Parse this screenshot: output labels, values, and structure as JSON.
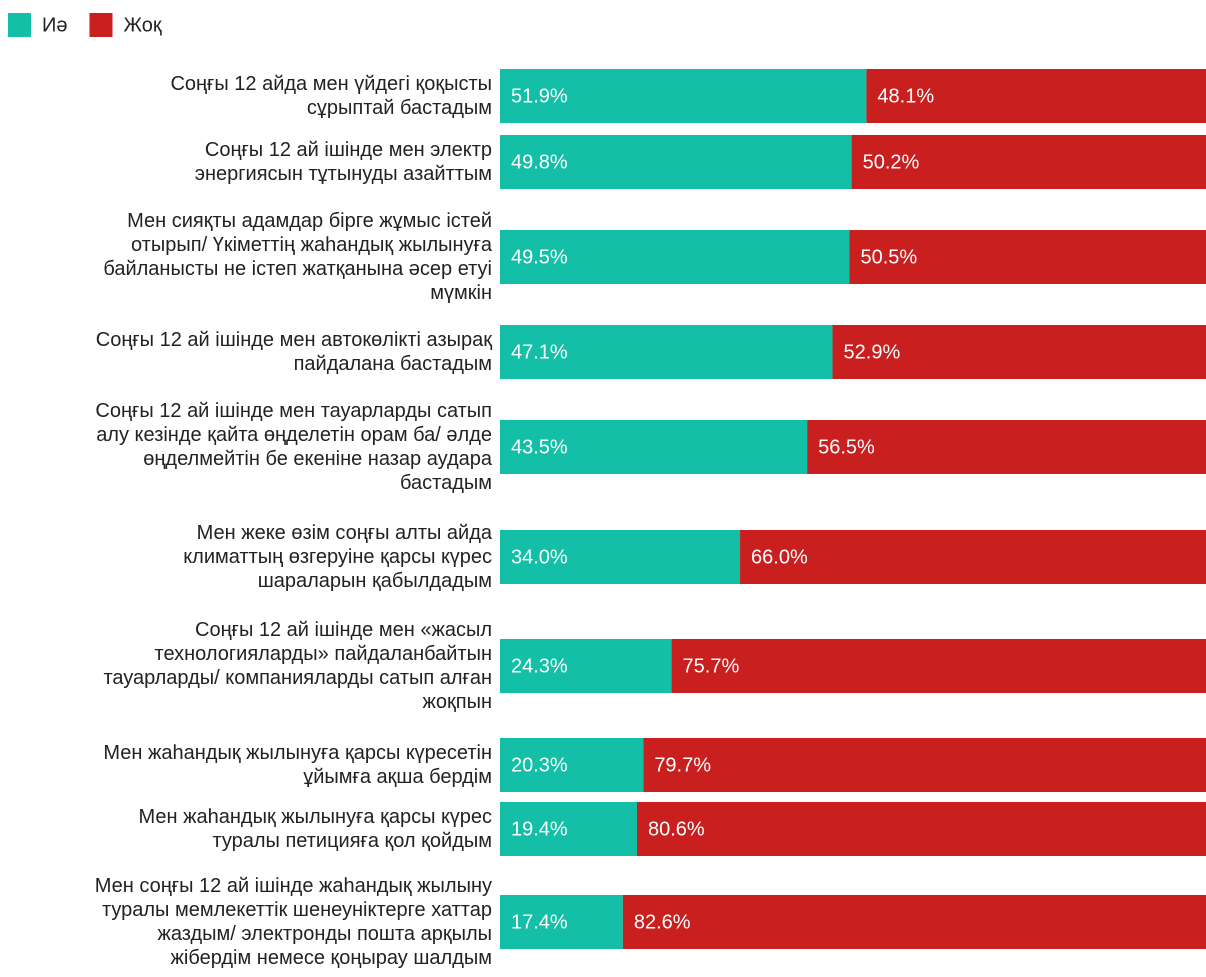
{
  "chart_data": {
    "type": "stacked-bar-horizontal",
    "categories": [
      "Соңғы 12 айда мен үйдегі қоқысты\nсұрыптай бастадым",
      "Соңғы 12 ай ішінде мен электр\nэнергиясын тұтынуды азайттым",
      "Мен сияқты адамдар бірге жұмыс істей\nотырып/ Үкіметтің жаһандық жылынуға\nбайланысты не істеп жатқанына әсер етуі\nмүмкін",
      "Соңғы 12 ай ішінде мен автокөлікті азырақ\nпайдалана бастадым",
      "Соңғы 12 ай ішінде мен тауарларды сатып\nалу кезінде қайта өңделетін орам ба/ әлде\nөңделмейтін бе екеніне назар аудара\nбастадым",
      "Мен жеке өзім соңғы алты айда\nклиматтың өзгеруіне қарсы күрес\nшараларын қабылдадым",
      "Соңғы 12 ай ішінде мен «жасыл\nтехнологияларды» пайдаланбайтын\nтауарларды/ компанияларды сатып алған\nжоқпын",
      "Мен жаһандық жылынуға қарсы күресетін\nұйымға ақша бердім",
      "Мен жаһандық жылынуға қарсы күрес\nтуралы петицияға қол қойдым",
      "Мен соңғы 12 ай ішінде жаһандық жылыну\nтуралы мемлекеттік шенеуніктерге хаттар\nжаздым/ электронды пошта арқылы\nжібердім немесе қоңырау шалдым"
    ],
    "series": [
      {
        "name": "Иә",
        "color": "#13bfa6",
        "values": [
          51.9,
          49.8,
          49.5,
          47.1,
          43.5,
          34.0,
          24.3,
          20.3,
          19.4,
          17.4
        ],
        "value_labels": [
          "51.9%",
          "49.8%",
          "49.5%",
          "47.1%",
          "43.5%",
          "34.0%",
          "24.3%",
          "20.3%",
          "19.4%",
          "17.4%"
        ]
      },
      {
        "name": "Жоқ",
        "color": "#c91f1f",
        "values": [
          48.1,
          50.2,
          50.5,
          52.9,
          56.5,
          66.0,
          75.7,
          79.7,
          80.6,
          82.6
        ],
        "value_labels": [
          "48.1%",
          "50.2%",
          "50.5%",
          "52.9%",
          "56.5%",
          "66.0%",
          "75.7%",
          "79.7%",
          "80.6%",
          "82.6%"
        ]
      }
    ],
    "xlim": [
      0,
      100
    ],
    "legend": "top-left"
  }
}
